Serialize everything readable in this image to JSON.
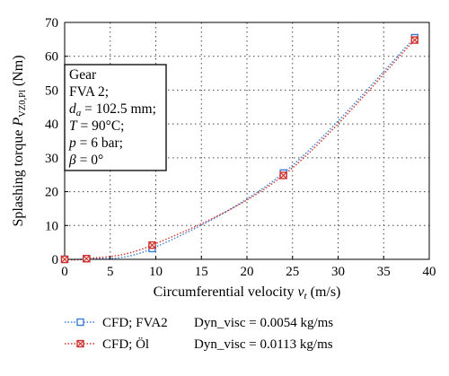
{
  "chart_data": {
    "type": "line",
    "title": "",
    "xlabel": "Circumferential velocity v_t (m/s)",
    "ylabel": "Splashing torque P_VZ0,Pl (Nm)",
    "xlabel_parts": {
      "main": "Circumferential velocity ",
      "var": "v",
      "sub": "t",
      "unit": " (m/s)"
    },
    "ylabel_parts": {
      "main": "Splashing torque ",
      "var": "P",
      "sub": "VZ0,Pl",
      "unit": " (Nm)"
    },
    "xlim": [
      0,
      40
    ],
    "ylim": [
      0,
      70
    ],
    "xticks": [
      0,
      5,
      10,
      15,
      20,
      25,
      30,
      35,
      40
    ],
    "yticks": [
      0,
      10,
      20,
      30,
      40,
      50,
      60,
      70
    ],
    "grid": true,
    "legend_position": "bottom-outside",
    "series": [
      {
        "name": "CFD; FVA2",
        "legend_label": "CFD; FVA2",
        "legend_extra": "Dyn_visc = 0.0054 kg/ms",
        "color": "#3a7bd5",
        "marker": "square",
        "x": [
          0,
          2.4,
          9.6,
          24.0,
          38.4
        ],
        "y": [
          0,
          0.2,
          3.2,
          25.5,
          65.5
        ]
      },
      {
        "name": "CFD; Öl",
        "legend_label": "CFD; Öl",
        "legend_extra": "Dyn_visc = 0.0113 kg/ms",
        "color": "#d0312d",
        "marker": "square-x",
        "x": [
          0,
          2.4,
          9.6,
          24.0,
          38.4
        ],
        "y": [
          0,
          0.2,
          4.2,
          24.8,
          64.8
        ]
      }
    ],
    "annotation": {
      "position": "upper-left",
      "lines": [
        {
          "text": "Gear"
        },
        {
          "text": "FVA 2;"
        },
        {
          "var": "d",
          "sub": "a",
          "text": " = 102.5 mm;"
        },
        {
          "var": "T",
          "text": " = 90°C;"
        },
        {
          "var": "p",
          "text": " = 6 bar;"
        },
        {
          "var": "β",
          "text": " = 0°"
        }
      ]
    }
  }
}
